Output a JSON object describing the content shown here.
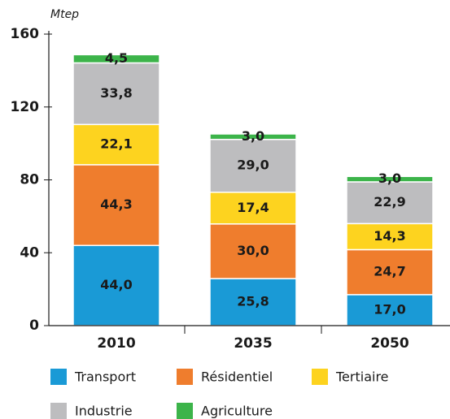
{
  "chart_data": {
    "type": "stacked_bar",
    "y_label": "Mtep",
    "categories": [
      "2010",
      "2035",
      "2050"
    ],
    "series": [
      {
        "name": "Transport",
        "color": "#1a9ad6",
        "values": [
          44.0,
          25.8,
          17.0
        ],
        "value_labels": [
          "44,0",
          "25,8",
          "17,0"
        ]
      },
      {
        "name": "Résidentiel",
        "color": "#ef7d2d",
        "values": [
          44.3,
          30.0,
          24.7
        ],
        "value_labels": [
          "44,3",
          "30,0",
          "24,7"
        ]
      },
      {
        "name": "Tertiaire",
        "color": "#fdd31f",
        "values": [
          22.1,
          17.4,
          14.3
        ],
        "value_labels": [
          "22,1",
          "17,4",
          "14,3"
        ]
      },
      {
        "name": "Industrie",
        "color": "#bdbdbf",
        "values": [
          33.8,
          29.0,
          22.9
        ],
        "value_labels": [
          "33,8",
          "29,0",
          "22,9"
        ]
      },
      {
        "name": "Agriculture",
        "color": "#3cb44a",
        "values": [
          4.5,
          3.0,
          3.0
        ],
        "value_labels": [
          "4,5",
          "3,0",
          "3,0"
        ]
      }
    ],
    "ylim": [
      0,
      160
    ],
    "yticks": [
      0,
      40,
      80,
      120,
      160
    ],
    "grid": false,
    "legend": "bottom"
  }
}
